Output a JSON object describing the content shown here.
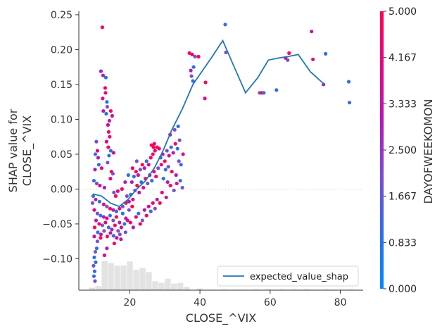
{
  "chart_data": {
    "type": "scatter",
    "title": "",
    "xlabel": "CLOSE_^VIX",
    "ylabel_lines": [
      "SHAP value for",
      "CLOSE_^VIX"
    ],
    "xlim": [
      5.5,
      86.5
    ],
    "ylim": [
      -0.145,
      0.255
    ],
    "x_ticks": [
      20,
      40,
      60,
      80
    ],
    "y_ticks": [
      -0.1,
      -0.05,
      0.0,
      0.05,
      0.1,
      0.15,
      0.2,
      0.25
    ],
    "y_tick_labels": [
      "−0.10",
      "−0.05",
      "0.00",
      "0.05",
      "0.10",
      "0.15",
      "0.20",
      "0.25"
    ],
    "zero_line": true,
    "grid": false,
    "legend": {
      "placement": "bottom-right",
      "entries": [
        "expected_value_shap"
      ]
    },
    "colorbar": {
      "label": "DAYOFWEEKOMON",
      "min": 0.0,
      "max": 5.0,
      "tick_values": [
        0,
        0.833,
        1.667,
        2.5,
        3.333,
        4.167,
        5.0
      ],
      "tick_labels": [
        "0.000",
        "0.833",
        "1.667",
        "2.500",
        "3.333",
        "4.167",
        "5.000"
      ],
      "colors": [
        "#008afb",
        "#2f6ee8",
        "#7a4fcf",
        "#b21ab7",
        "#e0078a",
        "#ff0052"
      ]
    },
    "series": [
      {
        "name": "expected_value_shap",
        "color": "#1f77b4",
        "x": [
          9.5,
          12,
          14.5,
          17,
          19.5,
          22,
          24.5,
          27,
          29.5,
          32,
          35,
          38,
          41,
          43.5,
          46.5,
          49.5,
          53,
          56.5,
          59.5,
          62.5,
          65,
          68,
          71.5,
          75.5
        ],
        "y": [
          -0.007,
          -0.01,
          -0.02,
          -0.025,
          -0.015,
          0.0,
          0.012,
          0.03,
          0.055,
          0.085,
          0.115,
          0.15,
          0.172,
          0.19,
          0.213,
          0.178,
          0.138,
          0.16,
          0.185,
          0.188,
          0.19,
          0.193,
          0.168,
          0.15
        ]
      }
    ],
    "histogram": {
      "bin_width": 1.8,
      "bins": [
        {
          "x": 8.4,
          "count": 3
        },
        {
          "x": 10.2,
          "count": 5
        },
        {
          "x": 12.0,
          "count": 36
        },
        {
          "x": 13.8,
          "count": 33
        },
        {
          "x": 15.6,
          "count": 30
        },
        {
          "x": 17.4,
          "count": 30
        },
        {
          "x": 19.2,
          "count": 35
        },
        {
          "x": 21.0,
          "count": 25
        },
        {
          "x": 22.8,
          "count": 27
        },
        {
          "x": 24.6,
          "count": 22
        },
        {
          "x": 26.4,
          "count": 11
        },
        {
          "x": 28.2,
          "count": 9
        },
        {
          "x": 30.0,
          "count": 14
        },
        {
          "x": 31.8,
          "count": 8
        },
        {
          "x": 33.6,
          "count": 9
        },
        {
          "x": 35.4,
          "count": 4
        },
        {
          "x": 39.0,
          "count": 2
        },
        {
          "x": 46.2,
          "count": 1
        },
        {
          "x": 55.2,
          "count": 1
        },
        {
          "x": 58.8,
          "count": 1
        },
        {
          "x": 62.4,
          "count": 1
        },
        {
          "x": 66.0,
          "count": 1
        },
        {
          "x": 69.6,
          "count": 1
        },
        {
          "x": 75.0,
          "count": 1
        },
        {
          "x": 82.2,
          "count": 1
        }
      ]
    },
    "points": [
      {
        "x": 12.2,
        "y": 0.232,
        "c": 5
      },
      {
        "x": 11.8,
        "y": 0.169,
        "c": 3
      },
      {
        "x": 12.4,
        "y": 0.163,
        "c": 3
      },
      {
        "x": 13.2,
        "y": 0.16,
        "c": 1
      },
      {
        "x": 13.0,
        "y": 0.145,
        "c": 5
      },
      {
        "x": 13.1,
        "y": 0.138,
        "c": 4
      },
      {
        "x": 12.3,
        "y": 0.13,
        "c": 4
      },
      {
        "x": 13.5,
        "y": 0.125,
        "c": 1
      },
      {
        "x": 13.6,
        "y": 0.118,
        "c": 2
      },
      {
        "x": 12.5,
        "y": 0.112,
        "c": 3
      },
      {
        "x": 13.3,
        "y": 0.108,
        "c": 1
      },
      {
        "x": 14.6,
        "y": 0.112,
        "c": 5
      },
      {
        "x": 15.0,
        "y": 0.105,
        "c": 4
      },
      {
        "x": 14.2,
        "y": 0.098,
        "c": 3
      },
      {
        "x": 13.8,
        "y": 0.092,
        "c": 4
      },
      {
        "x": 14.0,
        "y": 0.082,
        "c": 5
      },
      {
        "x": 14.3,
        "y": 0.075,
        "c": 4
      },
      {
        "x": 13.4,
        "y": 0.068,
        "c": 4
      },
      {
        "x": 10.5,
        "y": 0.068,
        "c": 2
      },
      {
        "x": 13.9,
        "y": 0.06,
        "c": 5
      },
      {
        "x": 10.8,
        "y": 0.055,
        "c": 4
      },
      {
        "x": 10.2,
        "y": 0.05,
        "c": 1
      },
      {
        "x": 11.0,
        "y": 0.045,
        "c": 3
      },
      {
        "x": 14.6,
        "y": 0.055,
        "c": 1
      },
      {
        "x": 14.1,
        "y": 0.048,
        "c": 1
      },
      {
        "x": 15.4,
        "y": 0.052,
        "c": 4
      },
      {
        "x": 13.7,
        "y": 0.038,
        "c": 2
      },
      {
        "x": 11.2,
        "y": 0.035,
        "c": 1
      },
      {
        "x": 12.0,
        "y": 0.03,
        "c": 4
      },
      {
        "x": 10.1,
        "y": 0.028,
        "c": 3
      },
      {
        "x": 14.8,
        "y": 0.025,
        "c": 5
      },
      {
        "x": 15.2,
        "y": 0.022,
        "c": 2
      },
      {
        "x": 9.8,
        "y": 0.012,
        "c": 1
      },
      {
        "x": 10.6,
        "y": 0.008,
        "c": 2
      },
      {
        "x": 11.5,
        "y": 0.005,
        "c": 4
      },
      {
        "x": 12.8,
        "y": 0.002,
        "c": 3
      },
      {
        "x": 14.5,
        "y": 0.015,
        "c": 4
      },
      {
        "x": 16.6,
        "y": -0.003,
        "c": 4
      },
      {
        "x": 16.0,
        "y": -0.01,
        "c": 5
      },
      {
        "x": 15.5,
        "y": -0.005,
        "c": 2
      },
      {
        "x": 9.6,
        "y": -0.01,
        "c": 1
      },
      {
        "x": 9.4,
        "y": -0.02,
        "c": 2
      },
      {
        "x": 10.3,
        "y": -0.015,
        "c": 3
      },
      {
        "x": 11.4,
        "y": -0.018,
        "c": 1
      },
      {
        "x": 12.6,
        "y": -0.022,
        "c": 4
      },
      {
        "x": 13.5,
        "y": -0.025,
        "c": 2
      },
      {
        "x": 14.4,
        "y": -0.028,
        "c": 5
      },
      {
        "x": 15.3,
        "y": -0.03,
        "c": 3
      },
      {
        "x": 16.2,
        "y": -0.032,
        "c": 1
      },
      {
        "x": 17.1,
        "y": -0.028,
        "c": 4
      },
      {
        "x": 18.0,
        "y": -0.025,
        "c": 2
      },
      {
        "x": 18.9,
        "y": -0.02,
        "c": 5
      },
      {
        "x": 19.8,
        "y": -0.018,
        "c": 3
      },
      {
        "x": 9.9,
        "y": -0.03,
        "c": 4
      },
      {
        "x": 10.8,
        "y": -0.035,
        "c": 2
      },
      {
        "x": 11.7,
        "y": -0.038,
        "c": 1
      },
      {
        "x": 12.6,
        "y": -0.04,
        "c": 3
      },
      {
        "x": 13.5,
        "y": -0.042,
        "c": 4
      },
      {
        "x": 14.4,
        "y": -0.038,
        "c": 1
      },
      {
        "x": 15.3,
        "y": -0.045,
        "c": 2
      },
      {
        "x": 16.2,
        "y": -0.04,
        "c": 5
      },
      {
        "x": 17.1,
        "y": -0.048,
        "c": 3
      },
      {
        "x": 18.0,
        "y": -0.035,
        "c": 1
      },
      {
        "x": 18.9,
        "y": -0.042,
        "c": 4
      },
      {
        "x": 19.8,
        "y": -0.03,
        "c": 2
      },
      {
        "x": 20.7,
        "y": -0.025,
        "c": 5
      },
      {
        "x": 10.4,
        "y": -0.045,
        "c": 3
      },
      {
        "x": 11.3,
        "y": -0.05,
        "c": 5
      },
      {
        "x": 12.2,
        "y": -0.052,
        "c": 2
      },
      {
        "x": 13.1,
        "y": -0.048,
        "c": 4
      },
      {
        "x": 14.0,
        "y": -0.055,
        "c": 1
      },
      {
        "x": 14.9,
        "y": -0.058,
        "c": 3
      },
      {
        "x": 15.8,
        "y": -0.052,
        "c": 5
      },
      {
        "x": 16.7,
        "y": -0.06,
        "c": 2
      },
      {
        "x": 17.6,
        "y": -0.055,
        "c": 4
      },
      {
        "x": 18.5,
        "y": -0.05,
        "c": 1
      },
      {
        "x": 19.4,
        "y": -0.045,
        "c": 3
      },
      {
        "x": 10.0,
        "y": -0.055,
        "c": 5
      },
      {
        "x": 10.9,
        "y": -0.062,
        "c": 1
      },
      {
        "x": 11.8,
        "y": -0.065,
        "c": 4
      },
      {
        "x": 12.7,
        "y": -0.06,
        "c": 2
      },
      {
        "x": 13.6,
        "y": -0.068,
        "c": 5
      },
      {
        "x": 14.5,
        "y": -0.063,
        "c": 3
      },
      {
        "x": 15.4,
        "y": -0.067,
        "c": 1
      },
      {
        "x": 16.3,
        "y": -0.07,
        "c": 4
      },
      {
        "x": 17.2,
        "y": -0.065,
        "c": 2
      },
      {
        "x": 9.9,
        "y": -0.068,
        "c": 3
      },
      {
        "x": 10.8,
        "y": -0.075,
        "c": 2
      },
      {
        "x": 11.7,
        "y": -0.07,
        "c": 5
      },
      {
        "x": 10.6,
        "y": -0.085,
        "c": 1
      },
      {
        "x": 10.2,
        "y": -0.09,
        "c": 2
      },
      {
        "x": 9.9,
        "y": -0.098,
        "c": 1
      },
      {
        "x": 10.3,
        "y": -0.105,
        "c": 1
      },
      {
        "x": 9.7,
        "y": -0.11,
        "c": 2
      },
      {
        "x": 10.0,
        "y": -0.118,
        "c": 1
      },
      {
        "x": 9.8,
        "y": -0.125,
        "c": 1
      },
      {
        "x": 10.1,
        "y": -0.132,
        "c": 2
      },
      {
        "x": 12.8,
        "y": -0.095,
        "c": 4
      },
      {
        "x": 13.5,
        "y": -0.085,
        "c": 3
      },
      {
        "x": 15.6,
        "y": -0.078,
        "c": 5
      },
      {
        "x": 17.5,
        "y": -0.072,
        "c": 3
      },
      {
        "x": 18.8,
        "y": -0.062,
        "c": 2
      },
      {
        "x": 20.2,
        "y": -0.048,
        "c": 5
      },
      {
        "x": 21.0,
        "y": -0.055,
        "c": 3
      },
      {
        "x": 21.8,
        "y": -0.04,
        "c": 4
      },
      {
        "x": 22.5,
        "y": -0.035,
        "c": 1
      },
      {
        "x": 23.0,
        "y": -0.05,
        "c": 5
      },
      {
        "x": 23.6,
        "y": -0.045,
        "c": 2
      },
      {
        "x": 24.2,
        "y": -0.03,
        "c": 3
      },
      {
        "x": 24.8,
        "y": -0.038,
        "c": 5
      },
      {
        "x": 25.4,
        "y": -0.025,
        "c": 4
      },
      {
        "x": 26.0,
        "y": -0.032,
        "c": 1
      },
      {
        "x": 26.6,
        "y": -0.02,
        "c": 5
      },
      {
        "x": 27.2,
        "y": -0.028,
        "c": 2
      },
      {
        "x": 27.8,
        "y": -0.015,
        "c": 3
      },
      {
        "x": 20.3,
        "y": -0.008,
        "c": 1
      },
      {
        "x": 20.9,
        "y": -0.015,
        "c": 4
      },
      {
        "x": 21.5,
        "y": -0.002,
        "c": 2
      },
      {
        "x": 22.1,
        "y": 0.005,
        "c": 5
      },
      {
        "x": 22.7,
        "y": -0.005,
        "c": 3
      },
      {
        "x": 23.3,
        "y": 0.01,
        "c": 1
      },
      {
        "x": 23.9,
        "y": 0.002,
        "c": 4
      },
      {
        "x": 24.5,
        "y": 0.015,
        "c": 5
      },
      {
        "x": 25.1,
        "y": 0.008,
        "c": 2
      },
      {
        "x": 25.7,
        "y": 0.02,
        "c": 3
      },
      {
        "x": 26.3,
        "y": 0.012,
        "c": 1
      },
      {
        "x": 26.9,
        "y": 0.025,
        "c": 4
      },
      {
        "x": 27.5,
        "y": 0.018,
        "c": 5
      },
      {
        "x": 28.1,
        "y": 0.03,
        "c": 2
      },
      {
        "x": 20.6,
        "y": 0.01,
        "c": 3
      },
      {
        "x": 21.2,
        "y": 0.018,
        "c": 1
      },
      {
        "x": 21.8,
        "y": 0.025,
        "c": 5
      },
      {
        "x": 22.4,
        "y": 0.02,
        "c": 4
      },
      {
        "x": 23.0,
        "y": 0.028,
        "c": 2
      },
      {
        "x": 23.6,
        "y": 0.035,
        "c": 5
      },
      {
        "x": 24.2,
        "y": 0.03,
        "c": 3
      },
      {
        "x": 24.8,
        "y": 0.04,
        "c": 1
      },
      {
        "x": 25.4,
        "y": 0.035,
        "c": 4
      },
      {
        "x": 26.0,
        "y": 0.045,
        "c": 5
      },
      {
        "x": 26.6,
        "y": 0.05,
        "c": 4
      },
      {
        "x": 27.2,
        "y": 0.055,
        "c": 5
      },
      {
        "x": 27.8,
        "y": 0.06,
        "c": 5
      },
      {
        "x": 26.2,
        "y": 0.063,
        "c": 5
      },
      {
        "x": 27.0,
        "y": 0.065,
        "c": 4
      },
      {
        "x": 28.4,
        "y": 0.058,
        "c": 4
      },
      {
        "x": 26.8,
        "y": 0.06,
        "c": 5
      },
      {
        "x": 20.8,
        "y": 0.03,
        "c": 5
      },
      {
        "x": 22.0,
        "y": 0.04,
        "c": 2
      },
      {
        "x": 19.6,
        "y": 0.02,
        "c": 1
      },
      {
        "x": 18.7,
        "y": 0.01,
        "c": 3
      },
      {
        "x": 17.8,
        "y": 0.0,
        "c": 5
      },
      {
        "x": 19.2,
        "y": -0.01,
        "c": 2
      },
      {
        "x": 28.8,
        "y": 0.045,
        "c": 1
      },
      {
        "x": 29.4,
        "y": 0.05,
        "c": 3
      },
      {
        "x": 30.0,
        "y": 0.04,
        "c": 5
      },
      {
        "x": 30.6,
        "y": 0.055,
        "c": 2
      },
      {
        "x": 31.2,
        "y": 0.048,
        "c": 4
      },
      {
        "x": 31.8,
        "y": 0.06,
        "c": 1
      },
      {
        "x": 32.4,
        "y": 0.052,
        "c": 3
      },
      {
        "x": 33.0,
        "y": 0.065,
        "c": 5
      },
      {
        "x": 33.6,
        "y": 0.058,
        "c": 1
      },
      {
        "x": 34.2,
        "y": 0.07,
        "c": 2
      },
      {
        "x": 31.5,
        "y": 0.078,
        "c": 3
      },
      {
        "x": 32.8,
        "y": 0.085,
        "c": 2
      },
      {
        "x": 33.8,
        "y": 0.09,
        "c": 1
      },
      {
        "x": 29.0,
        "y": 0.035,
        "c": 4
      },
      {
        "x": 30.2,
        "y": 0.028,
        "c": 1
      },
      {
        "x": 31.0,
        "y": 0.032,
        "c": 2
      },
      {
        "x": 32.0,
        "y": 0.025,
        "c": 5
      },
      {
        "x": 33.2,
        "y": 0.02,
        "c": 3
      },
      {
        "x": 34.0,
        "y": 0.04,
        "c": 2
      },
      {
        "x": 34.6,
        "y": 0.035,
        "c": 1
      },
      {
        "x": 35.2,
        "y": 0.05,
        "c": 4
      },
      {
        "x": 29.6,
        "y": 0.015,
        "c": 1
      },
      {
        "x": 30.8,
        "y": 0.01,
        "c": 3
      },
      {
        "x": 31.6,
        "y": 0.005,
        "c": 5
      },
      {
        "x": 32.6,
        "y": -0.002,
        "c": 2
      },
      {
        "x": 33.4,
        "y": 0.008,
        "c": 4
      },
      {
        "x": 34.4,
        "y": 0.012,
        "c": 1
      },
      {
        "x": 35.0,
        "y": 0.002,
        "c": 2
      },
      {
        "x": 29.2,
        "y": -0.005,
        "c": 4
      },
      {
        "x": 30.4,
        "y": -0.012,
        "c": 3
      },
      {
        "x": 28.6,
        "y": -0.02,
        "c": 5
      },
      {
        "x": 37.0,
        "y": 0.195,
        "c": 5
      },
      {
        "x": 37.8,
        "y": 0.193,
        "c": 4
      },
      {
        "x": 38.6,
        "y": 0.19,
        "c": 2
      },
      {
        "x": 39.6,
        "y": 0.19,
        "c": 5
      },
      {
        "x": 38.2,
        "y": 0.175,
        "c": 1
      },
      {
        "x": 37.4,
        "y": 0.17,
        "c": 3
      },
      {
        "x": 37.6,
        "y": 0.162,
        "c": 2
      },
      {
        "x": 38.0,
        "y": 0.155,
        "c": 1
      },
      {
        "x": 41.6,
        "y": 0.153,
        "c": 5
      },
      {
        "x": 41.4,
        "y": 0.13,
        "c": 4
      },
      {
        "x": 47.2,
        "y": 0.236,
        "c": 1
      },
      {
        "x": 47.4,
        "y": 0.196,
        "c": 2
      },
      {
        "x": 57.0,
        "y": 0.138,
        "c": 2
      },
      {
        "x": 57.6,
        "y": 0.138,
        "c": 5
      },
      {
        "x": 58.2,
        "y": 0.138,
        "c": 1
      },
      {
        "x": 61.8,
        "y": 0.142,
        "c": 1
      },
      {
        "x": 64.4,
        "y": 0.188,
        "c": 4
      },
      {
        "x": 65.4,
        "y": 0.195,
        "c": 5
      },
      {
        "x": 65.0,
        "y": 0.185,
        "c": 2
      },
      {
        "x": 71.8,
        "y": 0.226,
        "c": 3
      },
      {
        "x": 72.2,
        "y": 0.186,
        "c": 4
      },
      {
        "x": 75.2,
        "y": 0.15,
        "c": 3
      },
      {
        "x": 75.8,
        "y": 0.194,
        "c": 1
      },
      {
        "x": 82.4,
        "y": 0.154,
        "c": 1
      },
      {
        "x": 82.6,
        "y": 0.124,
        "c": 1
      }
    ]
  }
}
